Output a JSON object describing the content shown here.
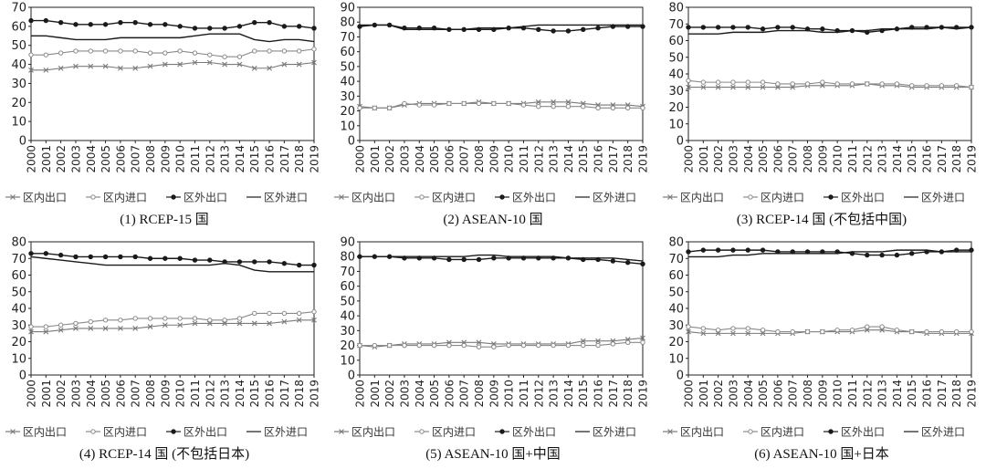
{
  "legend": [
    "区内出口",
    "区内进口",
    "区外出口",
    "区外进口"
  ],
  "series_styles": [
    {
      "color": "#7a7a7a",
      "marker": "x"
    },
    {
      "color": "#8a8a8a",
      "marker": "circle-open"
    },
    {
      "color": "#1a1a1a",
      "marker": "circle"
    },
    {
      "color": "#1a1a1a",
      "marker": "line"
    }
  ],
  "chart_data": [
    {
      "type": "line",
      "title": "(1) RCEP-15 国",
      "x": [
        "2000",
        "2001",
        "2002",
        "2003",
        "2004",
        "2005",
        "2006",
        "2007",
        "2008",
        "2009",
        "2010",
        "2011",
        "2012",
        "2013",
        "2014",
        "2015",
        "2016",
        "2017",
        "2018",
        "2019"
      ],
      "ylim": [
        0,
        70
      ],
      "yticks": [
        0,
        10,
        20,
        30,
        40,
        50,
        60,
        70
      ],
      "series": [
        {
          "name": "区内出口",
          "values": [
            37,
            37,
            38,
            39,
            39,
            39,
            38,
            38,
            39,
            40,
            40,
            41,
            41,
            40,
            40,
            38,
            38,
            40,
            40,
            41
          ]
        },
        {
          "name": "区内进口",
          "values": [
            45,
            45,
            46,
            47,
            47,
            47,
            47,
            47,
            46,
            46,
            47,
            46,
            45,
            44,
            44,
            47,
            47,
            47,
            47,
            48
          ]
        },
        {
          "name": "区外出口",
          "values": [
            63,
            63,
            62,
            61,
            61,
            61,
            62,
            62,
            61,
            61,
            60,
            59,
            59,
            59,
            60,
            62,
            62,
            60,
            60,
            59
          ]
        },
        {
          "name": "区外进口",
          "values": [
            55,
            55,
            54,
            53,
            53,
            53,
            54,
            54,
            54,
            54,
            54,
            55,
            56,
            56,
            56,
            53,
            52,
            53,
            53,
            52
          ]
        }
      ]
    },
    {
      "type": "line",
      "title": "(2) ASEAN-10 国",
      "x": [
        "2000",
        "2001",
        "2002",
        "2003",
        "2004",
        "2005",
        "2006",
        "2007",
        "2008",
        "2009",
        "2010",
        "2011",
        "2012",
        "2013",
        "2014",
        "2015",
        "2016",
        "2017",
        "2018",
        "2019"
      ],
      "ylim": [
        0,
        90
      ],
      "yticks": [
        0,
        10,
        20,
        30,
        40,
        50,
        60,
        70,
        80,
        90
      ],
      "series": [
        {
          "name": "区内出口",
          "values": [
            23,
            22,
            22,
            24,
            25,
            25,
            25,
            25,
            26,
            25,
            25,
            25,
            26,
            26,
            26,
            25,
            24,
            24,
            24,
            23
          ]
        },
        {
          "name": "区内进口",
          "values": [
            22,
            22,
            22,
            25,
            24,
            24,
            25,
            25,
            25,
            25,
            25,
            24,
            23,
            23,
            23,
            23,
            22,
            22,
            22,
            22
          ]
        },
        {
          "name": "区外出口",
          "values": [
            77,
            78,
            78,
            76,
            76,
            76,
            75,
            75,
            75,
            75,
            76,
            76,
            75,
            74,
            74,
            75,
            76,
            77,
            77,
            77
          ]
        },
        {
          "name": "区外进口",
          "values": [
            78,
            78,
            78,
            75,
            75,
            75,
            75,
            75,
            76,
            76,
            76,
            77,
            78,
            78,
            78,
            78,
            78,
            78,
            78,
            78
          ]
        }
      ]
    },
    {
      "type": "line",
      "title": "(3) RCEP-14 国 (不包括中国)",
      "x": [
        "2000",
        "2001",
        "2002",
        "2003",
        "2004",
        "2005",
        "2006",
        "2007",
        "2008",
        "2009",
        "2010",
        "2011",
        "2012",
        "2013",
        "2014",
        "2015",
        "2016",
        "2017",
        "2018",
        "2019"
      ],
      "ylim": [
        0,
        80
      ],
      "yticks": [
        0,
        10,
        20,
        30,
        40,
        50,
        60,
        70,
        80
      ],
      "series": [
        {
          "name": "区内出口",
          "values": [
            32,
            32,
            32,
            32,
            32,
            32,
            32,
            32,
            33,
            33,
            33,
            33,
            34,
            33,
            33,
            32,
            32,
            32,
            32,
            32
          ]
        },
        {
          "name": "区内进口",
          "values": [
            36,
            35,
            35,
            35,
            35,
            35,
            34,
            34,
            34,
            35,
            34,
            34,
            34,
            34,
            34,
            33,
            33,
            33,
            33,
            32
          ]
        },
        {
          "name": "区外出口",
          "values": [
            68,
            68,
            68,
            68,
            68,
            67,
            68,
            68,
            67,
            67,
            66,
            66,
            65,
            66,
            67,
            68,
            68,
            68,
            68,
            68
          ]
        },
        {
          "name": "区外进口",
          "values": [
            64,
            64,
            64,
            65,
            65,
            65,
            66,
            66,
            66,
            65,
            65,
            66,
            66,
            67,
            67,
            67,
            67,
            68,
            67,
            68
          ]
        }
      ]
    },
    {
      "type": "line",
      "title": "(4) RCEP-14 国 (不包括日本)",
      "x": [
        "2000",
        "2001",
        "2002",
        "2003",
        "2004",
        "2005",
        "2006",
        "2007",
        "2008",
        "2009",
        "2010",
        "2011",
        "2012",
        "2013",
        "2014",
        "2015",
        "2016",
        "2017",
        "2018",
        "2019"
      ],
      "ylim": [
        0,
        80
      ],
      "yticks": [
        0,
        10,
        20,
        30,
        40,
        50,
        60,
        70,
        80
      ],
      "series": [
        {
          "name": "区内出口",
          "values": [
            26,
            26,
            27,
            28,
            28,
            28,
            28,
            28,
            29,
            30,
            30,
            31,
            31,
            31,
            31,
            31,
            31,
            32,
            33,
            33
          ]
        },
        {
          "name": "区内进口",
          "values": [
            29,
            29,
            30,
            31,
            32,
            33,
            33,
            34,
            34,
            34,
            34,
            34,
            33,
            33,
            34,
            37,
            37,
            37,
            37,
            38
          ]
        },
        {
          "name": "区外出口",
          "values": [
            73,
            73,
            72,
            71,
            71,
            71,
            71,
            71,
            70,
            70,
            70,
            69,
            69,
            68,
            68,
            68,
            68,
            67,
            66,
            66
          ]
        },
        {
          "name": "区外进口",
          "values": [
            71,
            70,
            69,
            68,
            67,
            66,
            66,
            66,
            66,
            66,
            66,
            66,
            66,
            67,
            66,
            63,
            62,
            62,
            62,
            62
          ]
        }
      ]
    },
    {
      "type": "line",
      "title": "(5) ASEAN-10 国+中国",
      "x": [
        "2000",
        "2001",
        "2002",
        "2003",
        "2004",
        "2005",
        "2006",
        "2007",
        "2008",
        "2009",
        "2010",
        "2011",
        "2012",
        "2013",
        "2014",
        "2015",
        "2016",
        "2017",
        "2018",
        "2019"
      ],
      "ylim": [
        0,
        90
      ],
      "yticks": [
        0,
        10,
        20,
        30,
        40,
        50,
        60,
        70,
        80,
        90
      ],
      "series": [
        {
          "name": "区内出口",
          "values": [
            20,
            19,
            20,
            21,
            21,
            21,
            22,
            22,
            22,
            21,
            21,
            21,
            21,
            21,
            21,
            23,
            23,
            23,
            24,
            25
          ]
        },
        {
          "name": "区内进口",
          "values": [
            20,
            20,
            20,
            20,
            20,
            20,
            20,
            20,
            19,
            19,
            20,
            20,
            20,
            20,
            20,
            20,
            20,
            21,
            22,
            22
          ]
        },
        {
          "name": "区外出口",
          "values": [
            80,
            80,
            80,
            79,
            79,
            79,
            78,
            78,
            78,
            79,
            79,
            79,
            79,
            79,
            79,
            78,
            78,
            77,
            76,
            75
          ]
        },
        {
          "name": "区外进口",
          "values": [
            80,
            80,
            80,
            80,
            80,
            80,
            80,
            80,
            81,
            81,
            80,
            80,
            80,
            80,
            79,
            79,
            79,
            79,
            78,
            77
          ]
        }
      ]
    },
    {
      "type": "line",
      "title": "(6) ASEAN-10 国+日本",
      "x": [
        "2000",
        "2001",
        "2002",
        "2003",
        "2004",
        "2005",
        "2006",
        "2007",
        "2008",
        "2009",
        "2010",
        "2011",
        "2012",
        "2013",
        "2014",
        "2015",
        "2016",
        "2017",
        "2018",
        "2019"
      ],
      "ylim": [
        0,
        80
      ],
      "yticks": [
        0,
        10,
        20,
        30,
        40,
        50,
        60,
        70,
        80
      ],
      "series": [
        {
          "name": "区内出口",
          "values": [
            26,
            25,
            25,
            25,
            25,
            25,
            25,
            25,
            26,
            26,
            26,
            26,
            27,
            27,
            26,
            26,
            25,
            25,
            25,
            25
          ]
        },
        {
          "name": "区内进口",
          "values": [
            29,
            28,
            27,
            28,
            28,
            27,
            26,
            26,
            26,
            26,
            27,
            27,
            29,
            29,
            27,
            26,
            26,
            26,
            26,
            26
          ]
        },
        {
          "name": "区外出口",
          "values": [
            74,
            75,
            75,
            75,
            75,
            75,
            74,
            74,
            74,
            74,
            74,
            73,
            72,
            72,
            72,
            73,
            74,
            74,
            75,
            75
          ]
        },
        {
          "name": "区外进口",
          "values": [
            71,
            71,
            71,
            72,
            72,
            73,
            73,
            73,
            73,
            73,
            73,
            74,
            74,
            74,
            75,
            75,
            75,
            74,
            74,
            74
          ]
        }
      ]
    }
  ]
}
